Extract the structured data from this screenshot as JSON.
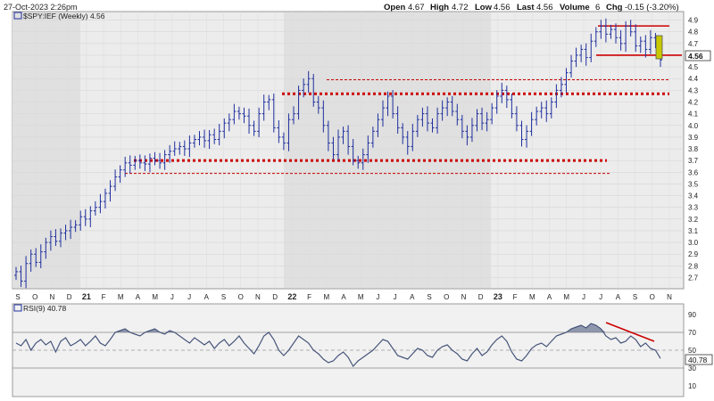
{
  "header": {
    "date": "27-Oct-2023 2:26pm",
    "open_label": "Open",
    "open": "4.67",
    "high_label": "High",
    "high": "4.72",
    "low_label": "Low",
    "low": "4.56",
    "last_label": "Last",
    "last": "4.56",
    "volume_label": "Volume",
    "volume": "6",
    "chg_label": "Chg",
    "chg": "-0.15 (-3.20%)"
  },
  "colors": {
    "bars": "#1f2f9e",
    "panel_bg_light": "#ececec",
    "panel_bg_dark": "#e0e0e0",
    "resistance": "#cc0000",
    "rsi_line": "#46557a",
    "rsi_fill": "#6e7895",
    "highlight_candle": "#c8c800"
  },
  "price_panel": {
    "legend_icon": "chart-icon",
    "legend": "$SPY:IEF (Weekly) 4.56",
    "last_price_tag": "4.56"
  },
  "rsi_panel": {
    "legend_icon": "chart-icon",
    "legend": "RSI(9) 40.78",
    "value_tag": "40.78"
  },
  "chart_data": [
    {
      "type": "ohlc",
      "title": "$SPY:IEF (Weekly)",
      "ylim": [
        2.62,
        4.95
      ],
      "yticks": [
        "4.9",
        "4.8",
        "4.7",
        "4.6",
        "4.5",
        "4.4",
        "4.3",
        "4.2",
        "4.1",
        "4.0",
        "3.9",
        "3.8",
        "3.7",
        "3.6",
        "3.5",
        "3.4",
        "3.3",
        "3.2",
        "3.1",
        "3.0",
        "2.9",
        "2.8",
        "2.7"
      ],
      "xticks": [
        "S",
        "O",
        "N",
        "D",
        "21",
        "F",
        "M",
        "A",
        "M",
        "J",
        "J",
        "A",
        "S",
        "O",
        "N",
        "D",
        "22",
        "F",
        "M",
        "A",
        "M",
        "J",
        "J",
        "A",
        "S",
        "O",
        "N",
        "D",
        "23",
        "F",
        "M",
        "A",
        "M",
        "J",
        "J",
        "A",
        "S",
        "O",
        "N"
      ],
      "closes": [
        2.75,
        2.67,
        2.82,
        2.9,
        2.83,
        2.92,
        3.0,
        3.05,
        3.01,
        3.08,
        3.1,
        3.13,
        3.15,
        3.22,
        3.2,
        3.27,
        3.3,
        3.35,
        3.42,
        3.48,
        3.56,
        3.62,
        3.68,
        3.66,
        3.7,
        3.68,
        3.67,
        3.72,
        3.7,
        3.68,
        3.75,
        3.78,
        3.8,
        3.82,
        3.8,
        3.85,
        3.88,
        3.9,
        3.87,
        3.92,
        3.88,
        3.95,
        4.02,
        4.05,
        4.12,
        4.1,
        4.08,
        4.0,
        3.95,
        4.1,
        4.2,
        4.22,
        3.98,
        3.9,
        3.85,
        4.05,
        4.1,
        4.3,
        4.35,
        4.4,
        4.2,
        4.15,
        4.0,
        3.85,
        3.75,
        3.9,
        3.95,
        3.82,
        3.7,
        3.68,
        3.75,
        3.85,
        3.95,
        4.05,
        4.15,
        4.25,
        4.1,
        3.98,
        3.9,
        3.82,
        3.95,
        4.05,
        4.1,
        4.02,
        3.98,
        4.1,
        4.15,
        4.2,
        4.12,
        4.05,
        3.95,
        3.9,
        4.0,
        4.1,
        4.02,
        4.05,
        4.15,
        4.25,
        4.3,
        4.22,
        4.1,
        4.0,
        3.88,
        3.95,
        4.05,
        4.12,
        4.15,
        4.1,
        4.2,
        4.3,
        4.35,
        4.45,
        4.55,
        4.6,
        4.65,
        4.58,
        4.72,
        4.8,
        4.85,
        4.78,
        4.82,
        4.75,
        4.7,
        4.85,
        4.8,
        4.68,
        4.72,
        4.65,
        4.75,
        4.71,
        4.56
      ],
      "last": 4.56,
      "annotations": [
        {
          "label": "resistance",
          "value": 4.27,
          "style": "thick-dotted",
          "color": "#cc0000"
        },
        {
          "label": "resistance",
          "value": 4.39,
          "style": "thin-dashed",
          "color": "#cc0000"
        },
        {
          "label": "support",
          "value": 3.7,
          "style": "thick-dotted",
          "color": "#cc0000"
        },
        {
          "label": "support",
          "value": 3.59,
          "style": "thin-dashed",
          "color": "#cc0000"
        },
        {
          "label": "range-top",
          "value": 4.85,
          "style": "solid",
          "color": "#cc0000"
        },
        {
          "label": "range-bottom",
          "value": 4.6,
          "style": "solid",
          "color": "#cc0000"
        }
      ]
    },
    {
      "type": "line",
      "title": "RSI(9)",
      "ylim": [
        0,
        100
      ],
      "yticks": [
        "90",
        "70",
        "50",
        "30",
        "10"
      ],
      "reference_lines": [
        70,
        50,
        30
      ],
      "values": [
        58,
        55,
        62,
        50,
        58,
        62,
        56,
        60,
        48,
        60,
        64,
        55,
        58,
        62,
        55,
        60,
        66,
        58,
        55,
        62,
        70,
        72,
        74,
        70,
        68,
        66,
        70,
        72,
        74,
        70,
        68,
        72,
        70,
        66,
        62,
        58,
        64,
        60,
        56,
        60,
        52,
        58,
        62,
        55,
        60,
        66,
        58,
        52,
        46,
        55,
        66,
        70,
        62,
        50,
        44,
        50,
        58,
        66,
        62,
        58,
        50,
        46,
        40,
        36,
        38,
        44,
        48,
        42,
        32,
        38,
        42,
        46,
        50,
        56,
        62,
        60,
        52,
        44,
        42,
        40,
        46,
        52,
        50,
        44,
        42,
        50,
        54,
        56,
        50,
        46,
        40,
        38,
        46,
        52,
        44,
        48,
        56,
        62,
        66,
        60,
        48,
        40,
        38,
        44,
        52,
        56,
        58,
        54,
        60,
        66,
        68,
        70,
        74,
        76,
        78,
        75,
        80,
        78,
        74,
        66,
        62,
        64,
        58,
        60,
        66,
        62,
        54,
        58,
        52,
        50,
        40.78
      ],
      "trendline_label": "declining RSI highs",
      "last": 40.78
    }
  ]
}
